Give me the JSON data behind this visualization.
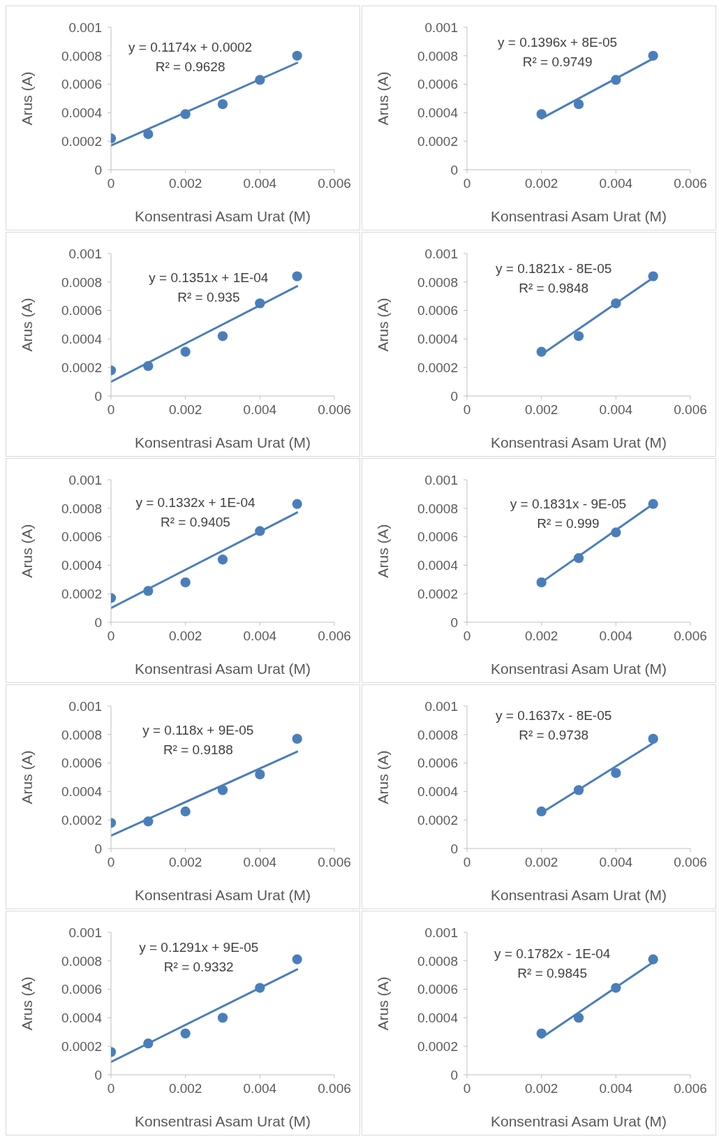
{
  "chart_data": [
    {
      "type": "scatter",
      "xlabel": "Konsentrasi Asam Urat (M)",
      "ylabel": "Arus (A)",
      "xlim": [
        0,
        0.006
      ],
      "xticks": [
        0,
        0.002,
        0.004,
        0.006
      ],
      "ylim": [
        0,
        0.001
      ],
      "yticks": [
        0,
        0.0002,
        0.0004,
        0.0006,
        0.0008,
        0.001
      ],
      "marker": "circle",
      "annotations": [
        "y = 0.1174x + 0.0002",
        "R² = 0.9628"
      ],
      "series": [
        {
          "color": "#4a7ebb",
          "x": [
            0,
            0.001,
            0.002,
            0.003,
            0.004,
            0.005
          ],
          "values": [
            0.00022,
            0.00025,
            0.00039,
            0.00046,
            0.00063,
            0.0008
          ]
        },
        {
          "type": "line",
          "marker": "none",
          "color": "#4a7ebb",
          "x": [
            0,
            0.005
          ],
          "values": [
            0.00017,
            0.00075
          ]
        }
      ]
    },
    {
      "type": "scatter",
      "xlabel": "Konsentrasi Asam Urat (M)",
      "ylabel": "Arus (A)",
      "xlim": [
        0,
        0.006
      ],
      "xticks": [
        0,
        0.002,
        0.004,
        0.006
      ],
      "ylim": [
        0,
        0.001
      ],
      "yticks": [
        0,
        0.0002,
        0.0004,
        0.0006,
        0.0008,
        0.001
      ],
      "marker": "circle",
      "annotations": [
        "y = 0.1396x + 8E-05",
        "R² = 0.9749"
      ],
      "series": [
        {
          "color": "#4a7ebb",
          "x": [
            0.002,
            0.003,
            0.004,
            0.005
          ],
          "values": [
            0.00039,
            0.00046,
            0.00063,
            0.0008
          ]
        },
        {
          "type": "line",
          "marker": "none",
          "color": "#4a7ebb",
          "x": [
            0.002,
            0.005
          ],
          "values": [
            0.00036,
            0.00078
          ]
        }
      ]
    },
    {
      "type": "scatter",
      "xlabel": "Konsentrasi Asam Urat (M)",
      "ylabel": "Arus (A)",
      "xlim": [
        0,
        0.006
      ],
      "xticks": [
        0,
        0.002,
        0.004,
        0.006
      ],
      "ylim": [
        0,
        0.001
      ],
      "yticks": [
        0,
        0.0002,
        0.0004,
        0.0006,
        0.0008,
        0.001
      ],
      "marker": "circle",
      "annotations": [
        "y = 0.1351x + 1E-04",
        "R² = 0.935"
      ],
      "series": [
        {
          "color": "#4a7ebb",
          "x": [
            0,
            0.001,
            0.002,
            0.003,
            0.004,
            0.005
          ],
          "values": [
            0.00018,
            0.00021,
            0.00031,
            0.00042,
            0.00065,
            0.00084
          ]
        },
        {
          "type": "line",
          "marker": "none",
          "color": "#4a7ebb",
          "x": [
            0,
            0.005
          ],
          "values": [
            0.0001,
            0.00077
          ]
        }
      ]
    },
    {
      "type": "scatter",
      "xlabel": "Konsentrasi Asam Urat (M)",
      "ylabel": "Arus (A)",
      "xlim": [
        0,
        0.006
      ],
      "xticks": [
        0,
        0.002,
        0.004,
        0.006
      ],
      "ylim": [
        0,
        0.001
      ],
      "yticks": [
        0,
        0.0002,
        0.0004,
        0.0006,
        0.0008,
        0.001
      ],
      "marker": "circle",
      "annotations": [
        "y = 0.1821x - 8E-05",
        "R² = 0.9848"
      ],
      "series": [
        {
          "color": "#4a7ebb",
          "x": [
            0.002,
            0.003,
            0.004,
            0.005
          ],
          "values": [
            0.00031,
            0.00042,
            0.00065,
            0.00084
          ]
        },
        {
          "type": "line",
          "marker": "none",
          "color": "#4a7ebb",
          "x": [
            0.002,
            0.005
          ],
          "values": [
            0.00029,
            0.00083
          ]
        }
      ]
    },
    {
      "type": "scatter",
      "xlabel": "Konsentrasi Asam Urat (M)",
      "ylabel": "Arus (A)",
      "xlim": [
        0,
        0.006
      ],
      "xticks": [
        0,
        0.002,
        0.004,
        0.006
      ],
      "ylim": [
        0,
        0.001
      ],
      "yticks": [
        0,
        0.0002,
        0.0004,
        0.0006,
        0.0008,
        0.001
      ],
      "marker": "circle",
      "annotations": [
        "y = 0.1332x + 1E-04",
        "R² = 0.9405"
      ],
      "series": [
        {
          "color": "#4a7ebb",
          "x": [
            0,
            0.001,
            0.002,
            0.003,
            0.004,
            0.005
          ],
          "values": [
            0.00017,
            0.00022,
            0.00028,
            0.00044,
            0.00064,
            0.00083
          ]
        },
        {
          "type": "line",
          "marker": "none",
          "color": "#4a7ebb",
          "x": [
            0,
            0.005
          ],
          "values": [
            0.0001,
            0.00077
          ]
        }
      ]
    },
    {
      "type": "scatter",
      "xlabel": "Konsentrasi Asam Urat (M)",
      "ylabel": "Arus (A)",
      "xlim": [
        0,
        0.006
      ],
      "xticks": [
        0,
        0.002,
        0.004,
        0.006
      ],
      "ylim": [
        0,
        0.001
      ],
      "yticks": [
        0,
        0.0002,
        0.0004,
        0.0006,
        0.0008,
        0.001
      ],
      "marker": "circle",
      "annotations": [
        "y = 0.1831x - 9E-05",
        "R² = 0.999"
      ],
      "series": [
        {
          "color": "#4a7ebb",
          "x": [
            0.002,
            0.003,
            0.004,
            0.005
          ],
          "values": [
            0.00028,
            0.00045,
            0.00063,
            0.00083
          ]
        },
        {
          "type": "line",
          "marker": "none",
          "color": "#4a7ebb",
          "x": [
            0.002,
            0.005
          ],
          "values": [
            0.00028,
            0.00083
          ]
        }
      ]
    },
    {
      "type": "scatter",
      "xlabel": "Konsentrasi Asam Urat (M)",
      "ylabel": "Arus (A)",
      "xlim": [
        0,
        0.006
      ],
      "xticks": [
        0,
        0.002,
        0.004,
        0.006
      ],
      "ylim": [
        0,
        0.001
      ],
      "yticks": [
        0,
        0.0002,
        0.0004,
        0.0006,
        0.0008,
        0.001
      ],
      "marker": "circle",
      "annotations": [
        "y = 0.118x + 9E-05",
        "R² = 0.9188"
      ],
      "series": [
        {
          "color": "#4a7ebb",
          "x": [
            0,
            0.001,
            0.002,
            0.003,
            0.004,
            0.005
          ],
          "values": [
            0.00018,
            0.00019,
            0.00026,
            0.00041,
            0.00052,
            0.00077
          ]
        },
        {
          "type": "line",
          "marker": "none",
          "color": "#4a7ebb",
          "x": [
            0,
            0.005
          ],
          "values": [
            9e-05,
            0.00068
          ]
        }
      ]
    },
    {
      "type": "scatter",
      "xlabel": "Konsentrasi Asam Urat (M)",
      "ylabel": "Arus (A)",
      "xlim": [
        0,
        0.006
      ],
      "xticks": [
        0,
        0.002,
        0.004,
        0.006
      ],
      "ylim": [
        0,
        0.001
      ],
      "yticks": [
        0,
        0.0002,
        0.0004,
        0.0006,
        0.0008,
        0.001
      ],
      "marker": "circle",
      "annotations": [
        "y = 0.1637x - 8E-05",
        "R² = 0.9738"
      ],
      "series": [
        {
          "color": "#4a7ebb",
          "x": [
            0.002,
            0.003,
            0.004,
            0.005
          ],
          "values": [
            0.00026,
            0.00041,
            0.00053,
            0.00077
          ]
        },
        {
          "type": "line",
          "marker": "none",
          "color": "#4a7ebb",
          "x": [
            0.002,
            0.005
          ],
          "values": [
            0.00025,
            0.00074
          ]
        }
      ]
    },
    {
      "type": "scatter",
      "xlabel": "Konsentrasi Asam Urat (M)",
      "ylabel": "Arus (A)",
      "xlim": [
        0,
        0.006
      ],
      "xticks": [
        0,
        0.002,
        0.004,
        0.006
      ],
      "ylim": [
        0,
        0.001
      ],
      "yticks": [
        0,
        0.0002,
        0.0004,
        0.0006,
        0.0008,
        0.001
      ],
      "marker": "circle",
      "annotations": [
        "y = 0.1291x + 9E-05",
        "R² = 0.9332"
      ],
      "series": [
        {
          "color": "#4a7ebb",
          "x": [
            0,
            0.001,
            0.002,
            0.003,
            0.004,
            0.005
          ],
          "values": [
            0.00016,
            0.00022,
            0.00029,
            0.0004,
            0.00061,
            0.00081
          ]
        },
        {
          "type": "line",
          "marker": "none",
          "color": "#4a7ebb",
          "x": [
            0,
            0.005
          ],
          "values": [
            9e-05,
            0.00074
          ]
        }
      ]
    },
    {
      "type": "scatter",
      "xlabel": "Konsentrasi Asam Urat (M)",
      "ylabel": "Arus (A)",
      "xlim": [
        0,
        0.006
      ],
      "xticks": [
        0,
        0.002,
        0.004,
        0.006
      ],
      "ylim": [
        0,
        0.001
      ],
      "yticks": [
        0,
        0.0002,
        0.0004,
        0.0006,
        0.0008,
        0.001
      ],
      "marker": "circle",
      "annotations": [
        "y = 0.1782x - 1E-04",
        "R² = 0.9845"
      ],
      "series": [
        {
          "color": "#4a7ebb",
          "x": [
            0.002,
            0.003,
            0.004,
            0.005
          ],
          "values": [
            0.00029,
            0.0004,
            0.00061,
            0.00081
          ]
        },
        {
          "type": "line",
          "marker": "none",
          "color": "#4a7ebb",
          "x": [
            0.002,
            0.005
          ],
          "values": [
            0.00026,
            0.00079
          ]
        }
      ]
    }
  ]
}
